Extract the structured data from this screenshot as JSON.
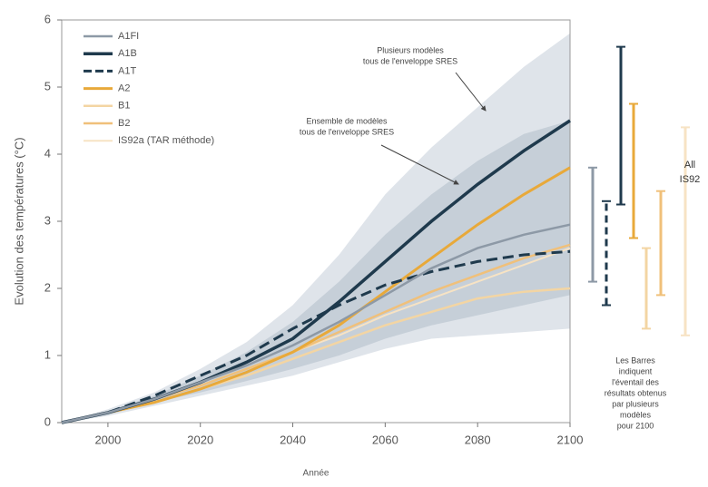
{
  "chart_data": {
    "type": "line",
    "y_label": "Evolution des températures (°C)",
    "x_label": "Année",
    "x": [
      1990,
      2000,
      2010,
      2020,
      2030,
      2040,
      2050,
      2060,
      2070,
      2080,
      2090,
      2100
    ],
    "xlim": [
      1990,
      2100
    ],
    "xticks": [
      2000,
      2020,
      2040,
      2060,
      2080,
      2100
    ],
    "ylim": [
      0,
      6
    ],
    "yticks": [
      0,
      1,
      2,
      3,
      4,
      5,
      6
    ],
    "bands": [
      {
        "color": "#dfe4ea",
        "lower": [
          0,
          0.1,
          0.25,
          0.4,
          0.55,
          0.7,
          0.9,
          1.1,
          1.25,
          1.3,
          1.35,
          1.4
        ],
        "upper": [
          0,
          0.2,
          0.45,
          0.8,
          1.2,
          1.75,
          2.5,
          3.4,
          4.1,
          4.7,
          5.3,
          5.8
        ]
      },
      {
        "color": "#c6cfd8",
        "lower": [
          0,
          0.12,
          0.3,
          0.45,
          0.62,
          0.8,
          1.0,
          1.25,
          1.45,
          1.6,
          1.75,
          1.9
        ],
        "upper": [
          0,
          0.17,
          0.4,
          0.7,
          1.05,
          1.5,
          2.1,
          2.8,
          3.4,
          3.9,
          4.3,
          4.5
        ]
      }
    ],
    "series": [
      {
        "name": "A1FI",
        "color": "#8d99a6",
        "width": 2.5,
        "dash": false,
        "values": [
          0,
          0.15,
          0.35,
          0.6,
          0.85,
          1.15,
          1.5,
          1.9,
          2.3,
          2.6,
          2.8,
          2.95
        ],
        "range": [
          2.1,
          3.8
        ]
      },
      {
        "name": "A1B",
        "color": "#1f3a4d",
        "width": 3.5,
        "dash": false,
        "values": [
          0,
          0.15,
          0.35,
          0.6,
          0.9,
          1.25,
          1.8,
          2.4,
          3.0,
          3.55,
          4.05,
          4.5
        ],
        "range": [
          3.25,
          5.6
        ]
      },
      {
        "name": "A1T",
        "color": "#1f3a4d",
        "width": 3,
        "dash": true,
        "values": [
          0,
          0.15,
          0.4,
          0.7,
          1.0,
          1.4,
          1.75,
          2.05,
          2.25,
          2.4,
          2.5,
          2.55
        ],
        "range": [
          1.75,
          3.3
        ]
      },
      {
        "name": "A2",
        "color": "#e8a93a",
        "width": 3,
        "dash": false,
        "values": [
          0,
          0.15,
          0.3,
          0.5,
          0.75,
          1.05,
          1.45,
          1.95,
          2.45,
          2.95,
          3.4,
          3.8
        ],
        "range": [
          2.75,
          4.75
        ]
      },
      {
        "name": "B1",
        "color": "#f3d5a3",
        "width": 2.5,
        "dash": false,
        "values": [
          0,
          0.15,
          0.3,
          0.5,
          0.7,
          0.95,
          1.2,
          1.45,
          1.65,
          1.85,
          1.95,
          2.0
        ],
        "range": [
          1.4,
          2.6
        ]
      },
      {
        "name": "B2",
        "color": "#f0c07a",
        "width": 2.5,
        "dash": false,
        "values": [
          0,
          0.15,
          0.35,
          0.55,
          0.8,
          1.05,
          1.35,
          1.65,
          1.95,
          2.2,
          2.45,
          2.65
        ],
        "range": [
          1.9,
          3.45
        ]
      },
      {
        "name": "IS92a (TAR méthode)",
        "color": "#f7e3c4",
        "width": 2,
        "dash": false,
        "values": [
          0,
          0.15,
          0.35,
          0.55,
          0.8,
          1.05,
          1.3,
          1.6,
          1.85,
          2.1,
          2.35,
          2.6
        ]
      }
    ],
    "all_is92": {
      "label": [
        "All",
        "IS92"
      ],
      "color": "#f7e3c4",
      "range": [
        1.3,
        4.4
      ]
    },
    "annotations": [
      [
        "Plusieurs modèles",
        "tous de l'enveloppe SRES"
      ],
      [
        "Ensemble de modèles",
        "tous de l'enveloppe SRES"
      ],
      [
        "Les Barres",
        "indiquent",
        "l'éventail des",
        "résultats obtenus",
        "par plusieurs",
        "modèles",
        "pour 2100"
      ]
    ]
  }
}
